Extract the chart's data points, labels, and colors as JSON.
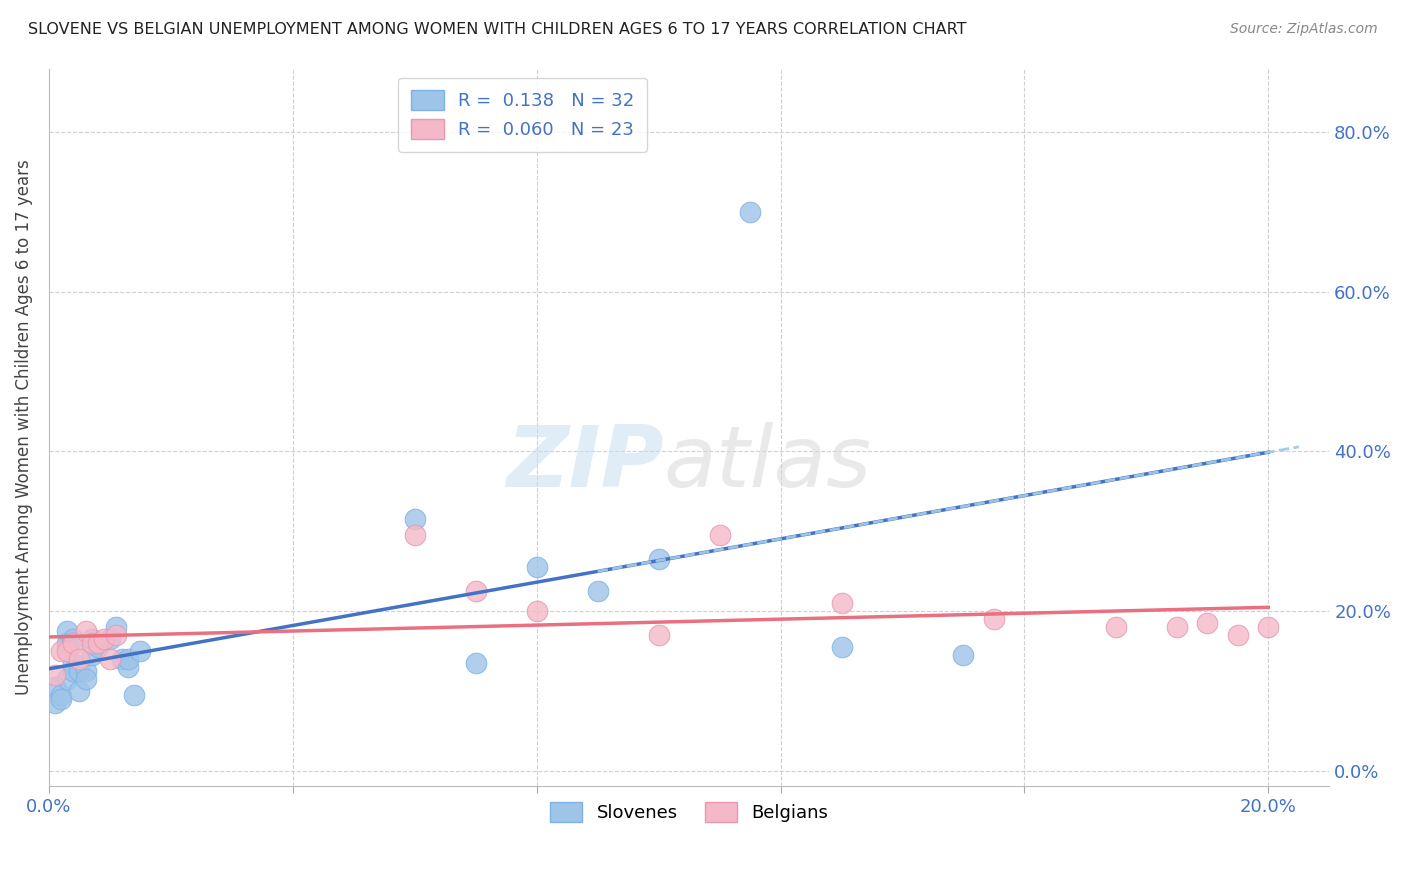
{
  "title": "SLOVENE VS BELGIAN UNEMPLOYMENT AMONG WOMEN WITH CHILDREN AGES 6 TO 17 YEARS CORRELATION CHART",
  "source": "Source: ZipAtlas.com",
  "ylabel": "Unemployment Among Women with Children Ages 6 to 17 years",
  "xlim": [
    0.0,
    0.21
  ],
  "ylim": [
    -0.02,
    0.88
  ],
  "xtick_positions": [
    0.0,
    0.04,
    0.08,
    0.12,
    0.16,
    0.2
  ],
  "xtick_labels": [
    "0.0%",
    "",
    "",
    "",
    "",
    "20.0%"
  ],
  "ytick_positions": [
    0.0,
    0.2,
    0.4,
    0.6,
    0.8
  ],
  "ytick_labels": [
    "0.0%",
    "20.0%",
    "40.0%",
    "60.0%",
    "80.0%"
  ],
  "slovene_color": "#9ec4e8",
  "slovene_edge_color": "#7fb3e8",
  "belgian_color": "#f5b8c8",
  "belgian_edge_color": "#e898b0",
  "slovene_line_color": "#4472C4",
  "belgian_line_color": "#e87080",
  "slovene_dash_color": "#a0c8e8",
  "slovene_R": "0.138",
  "slovene_N": "32",
  "belgian_R": "0.060",
  "belgian_N": "23",
  "slovene_x": [
    0.001,
    0.001,
    0.002,
    0.002,
    0.003,
    0.003,
    0.003,
    0.004,
    0.004,
    0.004,
    0.005,
    0.005,
    0.006,
    0.006,
    0.007,
    0.007,
    0.008,
    0.01,
    0.011,
    0.012,
    0.013,
    0.013,
    0.014,
    0.015,
    0.06,
    0.07,
    0.08,
    0.09,
    0.1,
    0.115,
    0.13,
    0.15
  ],
  "slovene_y": [
    0.105,
    0.085,
    0.095,
    0.09,
    0.115,
    0.16,
    0.175,
    0.165,
    0.135,
    0.125,
    0.125,
    0.1,
    0.125,
    0.115,
    0.165,
    0.145,
    0.155,
    0.165,
    0.18,
    0.14,
    0.13,
    0.14,
    0.095,
    0.15,
    0.315,
    0.135,
    0.255,
    0.225,
    0.265,
    0.7,
    0.155,
    0.145
  ],
  "belgian_x": [
    0.001,
    0.002,
    0.003,
    0.004,
    0.005,
    0.006,
    0.007,
    0.008,
    0.009,
    0.01,
    0.011,
    0.06,
    0.07,
    0.08,
    0.1,
    0.11,
    0.13,
    0.155,
    0.175,
    0.185,
    0.19,
    0.195,
    0.2
  ],
  "belgian_y": [
    0.12,
    0.15,
    0.15,
    0.16,
    0.14,
    0.175,
    0.16,
    0.16,
    0.165,
    0.14,
    0.17,
    0.295,
    0.225,
    0.2,
    0.17,
    0.295,
    0.21,
    0.19,
    0.18,
    0.18,
    0.185,
    0.17,
    0.18
  ],
  "watermark_zip": "ZIP",
  "watermark_atlas": "atlas",
  "bg_color": "#ffffff",
  "grid_color": "#d0d0d0",
  "tick_label_color": "#4472C4",
  "axis_label_color": "#444444",
  "title_color": "#222222",
  "source_color": "#888888"
}
